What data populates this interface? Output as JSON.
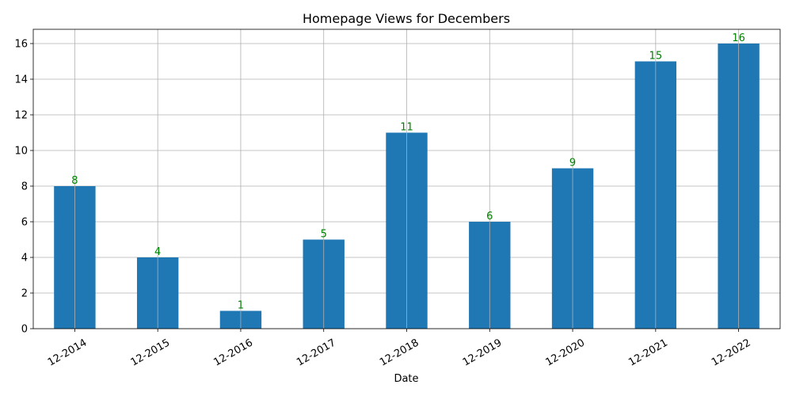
{
  "chart_data": {
    "type": "bar",
    "title": "Homepage Views for Decembers",
    "xlabel": "Date",
    "ylabel": "",
    "categories": [
      "12-2014",
      "12-2015",
      "12-2016",
      "12-2017",
      "12-2018",
      "12-2019",
      "12-2020",
      "12-2021",
      "12-2022"
    ],
    "values": [
      8,
      4,
      1,
      5,
      11,
      6,
      9,
      15,
      16
    ],
    "data_labels": [
      "8",
      "4",
      "1",
      "5",
      "11",
      "6",
      "9",
      "15",
      "16"
    ],
    "ylim": [
      0,
      16.8
    ],
    "yticks": [
      0,
      2,
      4,
      6,
      8,
      10,
      12,
      14,
      16
    ],
    "ytick_labels": [
      "0",
      "2",
      "4",
      "6",
      "8",
      "10",
      "12",
      "14",
      "16"
    ],
    "grid": true,
    "legend": false,
    "colors": {
      "bar": "#1f77b4",
      "data_label": "#008000",
      "grid": "#b0b0b0",
      "axis": "#000000"
    }
  }
}
